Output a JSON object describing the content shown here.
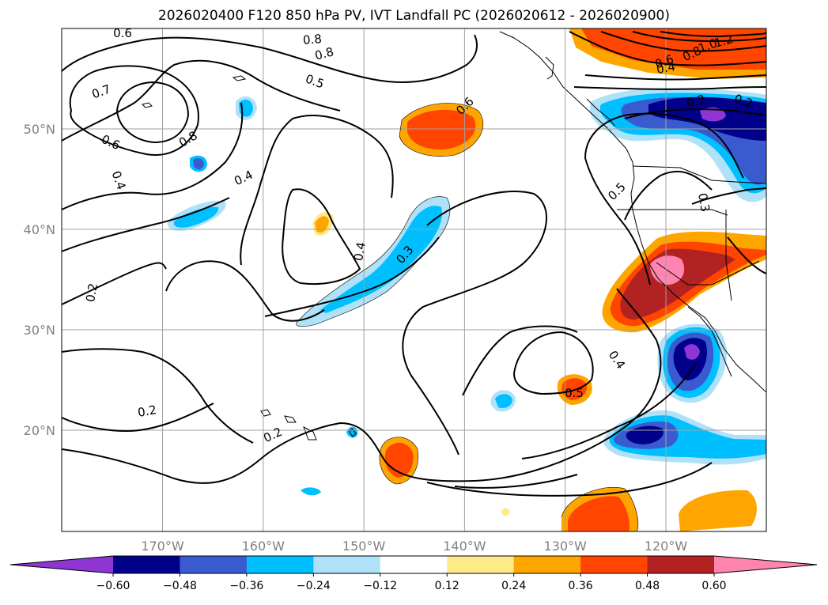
{
  "title": "2026020400 F120 850 hPa PV, IVT Landfall PC (2026020612 - 2026020900)",
  "lat_labels": [
    "50°N",
    "40°N",
    "30°N",
    "20°N"
  ],
  "lon_labels": [
    "170°W",
    "160°W",
    "150°W",
    "140°W",
    "130°W",
    "120°W"
  ],
  "colorbar": {
    "colors": [
      "#8e35d4",
      "#00008b",
      "#3a5bd0",
      "#00bfff",
      "#afe1f9",
      "#ffffff",
      "#ffea8a",
      "#ffa500",
      "#ff4500",
      "#b22222",
      "#ff85b0"
    ],
    "tick_labels": [
      "−0.60",
      "−0.48",
      "−0.36",
      "−0.24",
      "−0.12",
      "0.12",
      "0.24",
      "0.36",
      "0.48",
      "0.60"
    ]
  },
  "contour_labels": [
    "0.6",
    "0.8",
    "0.7",
    "0.6",
    "0.8",
    "0.4",
    "0.4",
    "0.5",
    "0.6",
    "0.8",
    "0.2",
    "0.4",
    "0.3",
    "0.2",
    "0.2",
    "0.5",
    "0.4",
    "0.5",
    "0.3",
    "1.2",
    "1.0",
    "0.8",
    "0.6",
    "0.4",
    "0.2",
    "0.2"
  ]
}
